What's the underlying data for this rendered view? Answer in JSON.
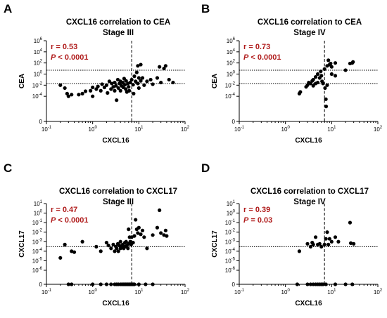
{
  "chart_data": [
    {
      "type": "scatter",
      "panel": "A",
      "title_line1": "CXCL16 correlation to CEA",
      "title_line2": "Stage III",
      "xlabel": "CXCL16",
      "ylabel": "CEA",
      "x_scale": "log",
      "y_scale": "log",
      "xlim": [
        0.1,
        100
      ],
      "ylim": [
        1e-06,
        1000000
      ],
      "y_break_zero": true,
      "x_ticks": [
        "10-1",
        "100",
        "101",
        "102"
      ],
      "y_ticks": [
        "0",
        "10-4",
        "10-2",
        "100",
        "102",
        "104",
        "106"
      ],
      "stat_r": "r = 0.53",
      "stat_p_label": "P",
      "stat_p_value": "< 0.0001",
      "x_cutoff": 7,
      "y_cutoffs": [
        5,
        0.02
      ],
      "points": [
        [
          0.2,
          0.01
        ],
        [
          0.25,
          0.003
        ],
        [
          0.28,
          0.0003
        ],
        [
          0.3,
          0.0001
        ],
        [
          0.35,
          0.0002
        ],
        [
          0.5,
          0.0002
        ],
        [
          0.6,
          0.0003
        ],
        [
          0.7,
          0.0008
        ],
        [
          0.9,
          0.001
        ],
        [
          1.0,
          0.004
        ],
        [
          1.0,
          0.0001
        ],
        [
          1.2,
          0.002
        ],
        [
          1.3,
          0.006
        ],
        [
          1.5,
          0.001
        ],
        [
          1.6,
          0.015
        ],
        [
          1.8,
          0.004
        ],
        [
          2.0,
          0.01
        ],
        [
          2.1,
          0.0004
        ],
        [
          2.3,
          0.05
        ],
        [
          2.5,
          0.002
        ],
        [
          2.6,
          0.02
        ],
        [
          2.8,
          0.005
        ],
        [
          3.0,
          0.001
        ],
        [
          3.0,
          0.03
        ],
        [
          3.2,
          0.008
        ],
        [
          3.3,
          2e-05
        ],
        [
          3.5,
          0.1
        ],
        [
          3.6,
          0.003
        ],
        [
          3.8,
          0.02
        ],
        [
          4.0,
          0.05
        ],
        [
          4.0,
          0.001
        ],
        [
          4.2,
          0.008
        ],
        [
          4.5,
          0.03
        ],
        [
          4.6,
          0.004
        ],
        [
          4.8,
          0.15
        ],
        [
          5.0,
          0.012
        ],
        [
          5.2,
          0.002
        ],
        [
          5.3,
          0.06
        ],
        [
          5.5,
          0.0006
        ],
        [
          5.8,
          0.02
        ],
        [
          6.0,
          0.005
        ],
        [
          6.2,
          0.001
        ],
        [
          6.5,
          0.03
        ],
        [
          7.0,
          0.1
        ],
        [
          7.5,
          0.012
        ],
        [
          7.7,
          0.0003
        ],
        [
          8.0,
          0.4
        ],
        [
          8.5,
          0.05
        ],
        [
          9.0,
          2
        ],
        [
          9.5,
          30
        ],
        [
          9.5,
          0.02
        ],
        [
          10,
          0.2
        ],
        [
          10,
          0.003
        ],
        [
          11,
          50
        ],
        [
          11,
          0.06
        ],
        [
          12,
          0.2
        ],
        [
          13,
          0.01
        ],
        [
          15,
          0.05
        ],
        [
          18,
          0.1
        ],
        [
          20,
          0.015
        ],
        [
          25,
          0.2
        ],
        [
          28,
          20
        ],
        [
          30,
          0.03
        ],
        [
          35,
          10
        ],
        [
          38,
          30
        ],
        [
          45,
          0.1
        ],
        [
          55,
          0.03
        ]
      ]
    },
    {
      "type": "scatter",
      "panel": "B",
      "title_line1": "CXCL16 correlation to CEA",
      "title_line2": "Stage IV",
      "xlabel": "CXCL16",
      "ylabel": "CEA",
      "x_scale": "log",
      "y_scale": "log",
      "xlim": [
        0.1,
        100
      ],
      "ylim": [
        1e-06,
        1000000
      ],
      "y_break_zero": true,
      "x_ticks": [
        "10-1",
        "100",
        "101",
        "102"
      ],
      "y_ticks": [
        "0",
        "10-4",
        "10-2",
        "100",
        "102",
        "104",
        "106"
      ],
      "stat_r": "r = 0.73",
      "stat_p_label": "P",
      "stat_p_value": "< 0.0001",
      "x_cutoff": 7,
      "y_cutoffs": [
        5,
        0.02
      ],
      "points": [
        [
          2.0,
          0.0003
        ],
        [
          2.1,
          0.0006
        ],
        [
          2.8,
          0.005
        ],
        [
          3.0,
          0.01
        ],
        [
          3.2,
          0.03
        ],
        [
          3.5,
          0.02
        ],
        [
          3.8,
          0.06
        ],
        [
          4.0,
          0.1
        ],
        [
          4.0,
          0.008
        ],
        [
          4.5,
          0.3
        ],
        [
          4.5,
          0.02
        ],
        [
          5.0,
          1
        ],
        [
          5.0,
          0.03
        ],
        [
          5.5,
          0.2
        ],
        [
          5.8,
          3
        ],
        [
          6.0,
          0.5
        ],
        [
          6.2,
          0.05
        ],
        [
          6.5,
          0.02
        ],
        [
          7.0,
          8
        ],
        [
          7.2,
          0.003
        ],
        [
          7.5,
          3e-05
        ],
        [
          7.6,
          1.5e-06
        ],
        [
          8.0,
          30
        ],
        [
          8.0,
          0.01
        ],
        [
          8.5,
          300
        ],
        [
          9.0,
          50
        ],
        [
          9.5,
          80
        ],
        [
          10,
          1
        ],
        [
          10,
          20
        ],
        [
          12,
          100
        ],
        [
          12,
          0.5
        ],
        [
          20,
          5
        ],
        [
          25,
          80
        ],
        [
          28,
          100
        ],
        [
          29,
          150
        ]
      ]
    },
    {
      "type": "scatter",
      "panel": "C",
      "title_line1": "CXCL16 correlation to CXCL17",
      "title_line2": "Stage III",
      "xlabel": "CXCL16",
      "ylabel": "CXCL17",
      "x_scale": "log",
      "y_scale": "log",
      "xlim": [
        0.1,
        100
      ],
      "ylim": [
        1e-06,
        10
      ],
      "y_break_zero": true,
      "x_ticks": [
        "10-1",
        "100",
        "101",
        "102"
      ],
      "y_ticks": [
        "0",
        "10-6",
        "10-5",
        "10-4",
        "10-3",
        "10-2",
        "10-1",
        "100",
        "101"
      ],
      "stat_r": "r = 0.47",
      "stat_p_label": "P",
      "stat_p_value": "< 0.0001",
      "x_cutoff": 7,
      "y_cutoffs": [
        0.0003
      ],
      "points": [
        [
          0.2,
          2e-05
        ],
        [
          0.25,
          0.0005
        ],
        [
          0.35,
          0.0001
        ],
        [
          0.4,
          8e-05
        ],
        [
          0.6,
          0.001
        ],
        [
          1.2,
          0.0003
        ],
        [
          1.5,
          0.0001
        ],
        [
          2.0,
          0.0008
        ],
        [
          2.2,
          0.0004
        ],
        [
          2.5,
          0.0002
        ],
        [
          2.8,
          0.0005
        ],
        [
          3.0,
          0.0001
        ],
        [
          3.2,
          0.0003
        ],
        [
          3.3,
          0.0002
        ],
        [
          3.5,
          0.0006
        ],
        [
          3.6,
          0.0001
        ],
        [
          3.8,
          0.0004
        ],
        [
          4.0,
          0.0002
        ],
        [
          4.0,
          0.001
        ],
        [
          4.2,
          0.0003
        ],
        [
          4.5,
          0.0005
        ],
        [
          4.7,
          0.0002
        ],
        [
          5.0,
          0.0008
        ],
        [
          5.0,
          0.0003
        ],
        [
          5.3,
          0.001
        ],
        [
          5.5,
          0.0004
        ],
        [
          5.8,
          0.0002
        ],
        [
          6.0,
          0.0006
        ],
        [
          6.0,
          0.02
        ],
        [
          6.3,
          0.003
        ],
        [
          6.5,
          0.001
        ],
        [
          6.8,
          0.0005
        ],
        [
          7.0,
          0.003
        ],
        [
          7.5,
          0.0008
        ],
        [
          8.0,
          0.004
        ],
        [
          8.5,
          0.2
        ],
        [
          9.0,
          0.02
        ],
        [
          9.5,
          0.008
        ],
        [
          10,
          0.03
        ],
        [
          11,
          0.006
        ],
        [
          12,
          0.015
        ],
        [
          13,
          0.003
        ],
        [
          15,
          0.0002
        ],
        [
          20,
          0.005
        ],
        [
          25,
          0.03
        ],
        [
          28,
          2
        ],
        [
          30,
          0.008
        ],
        [
          35,
          0.005
        ],
        [
          38,
          0.015
        ],
        [
          40,
          0.004
        ],
        [
          0.3,
          0
        ],
        [
          0.35,
          0
        ],
        [
          1.0,
          0
        ],
        [
          1.5,
          0
        ],
        [
          2.0,
          0
        ],
        [
          2.5,
          0
        ],
        [
          3.0,
          0
        ],
        [
          3.3,
          0
        ],
        [
          3.6,
          0
        ],
        [
          4.0,
          0
        ],
        [
          4.3,
          0
        ],
        [
          4.6,
          0
        ],
        [
          4.9,
          0
        ],
        [
          5.2,
          0
        ],
        [
          5.5,
          0
        ],
        [
          5.8,
          0
        ],
        [
          6.1,
          0
        ],
        [
          6.4,
          0
        ],
        [
          6.7,
          0
        ],
        [
          7.0,
          0
        ],
        [
          7.3,
          0
        ],
        [
          7.6,
          0
        ],
        [
          8.0,
          0
        ],
        [
          10,
          0
        ],
        [
          14,
          0
        ],
        [
          20,
          0
        ]
      ]
    },
    {
      "type": "scatter",
      "panel": "D",
      "title_line1": "CXCL16 correlation to CXCL17",
      "title_line2": "Stage IV",
      "xlabel": "CXCL16",
      "ylabel": "CXCL17",
      "x_scale": "log",
      "y_scale": "log",
      "xlim": [
        0.1,
        100
      ],
      "ylim": [
        1e-06,
        10
      ],
      "y_break_zero": true,
      "x_ticks": [
        "10-1",
        "100",
        "101",
        "102"
      ],
      "y_ticks": [
        "0",
        "10-6",
        "10-5",
        "10-4",
        "10-3",
        "10-2",
        "10-1",
        "100",
        "101"
      ],
      "stat_r": "r = 0.39",
      "stat_p_label": "P",
      "stat_p_value": "= 0.03",
      "x_cutoff": 7,
      "y_cutoffs": [
        0.0003
      ],
      "points": [
        [
          2.0,
          0.0001
        ],
        [
          3.0,
          0.0006
        ],
        [
          3.5,
          0.0003
        ],
        [
          3.8,
          0.0008
        ],
        [
          4.0,
          0.0005
        ],
        [
          4.5,
          0.003
        ],
        [
          5.0,
          0.0005
        ],
        [
          5.5,
          0.0006
        ],
        [
          6.0,
          0.0003
        ],
        [
          7.0,
          0.0005
        ],
        [
          7.5,
          0.002
        ],
        [
          8.0,
          0.01
        ],
        [
          8.5,
          0.0005
        ],
        [
          9.0,
          0.002
        ],
        [
          10,
          0.001
        ],
        [
          12,
          0.003
        ],
        [
          14,
          0.001
        ],
        [
          25,
          0.1
        ],
        [
          26,
          0.0007
        ],
        [
          30,
          0.0006
        ],
        [
          1.8,
          0
        ],
        [
          3.0,
          0
        ],
        [
          3.5,
          0
        ],
        [
          4.0,
          0
        ],
        [
          4.5,
          0
        ],
        [
          5.0,
          0
        ],
        [
          5.5,
          0
        ],
        [
          6.0,
          0
        ],
        [
          6.5,
          0
        ],
        [
          7.5,
          0
        ],
        [
          12,
          0
        ],
        [
          20,
          0
        ],
        [
          28,
          0
        ]
      ]
    }
  ]
}
